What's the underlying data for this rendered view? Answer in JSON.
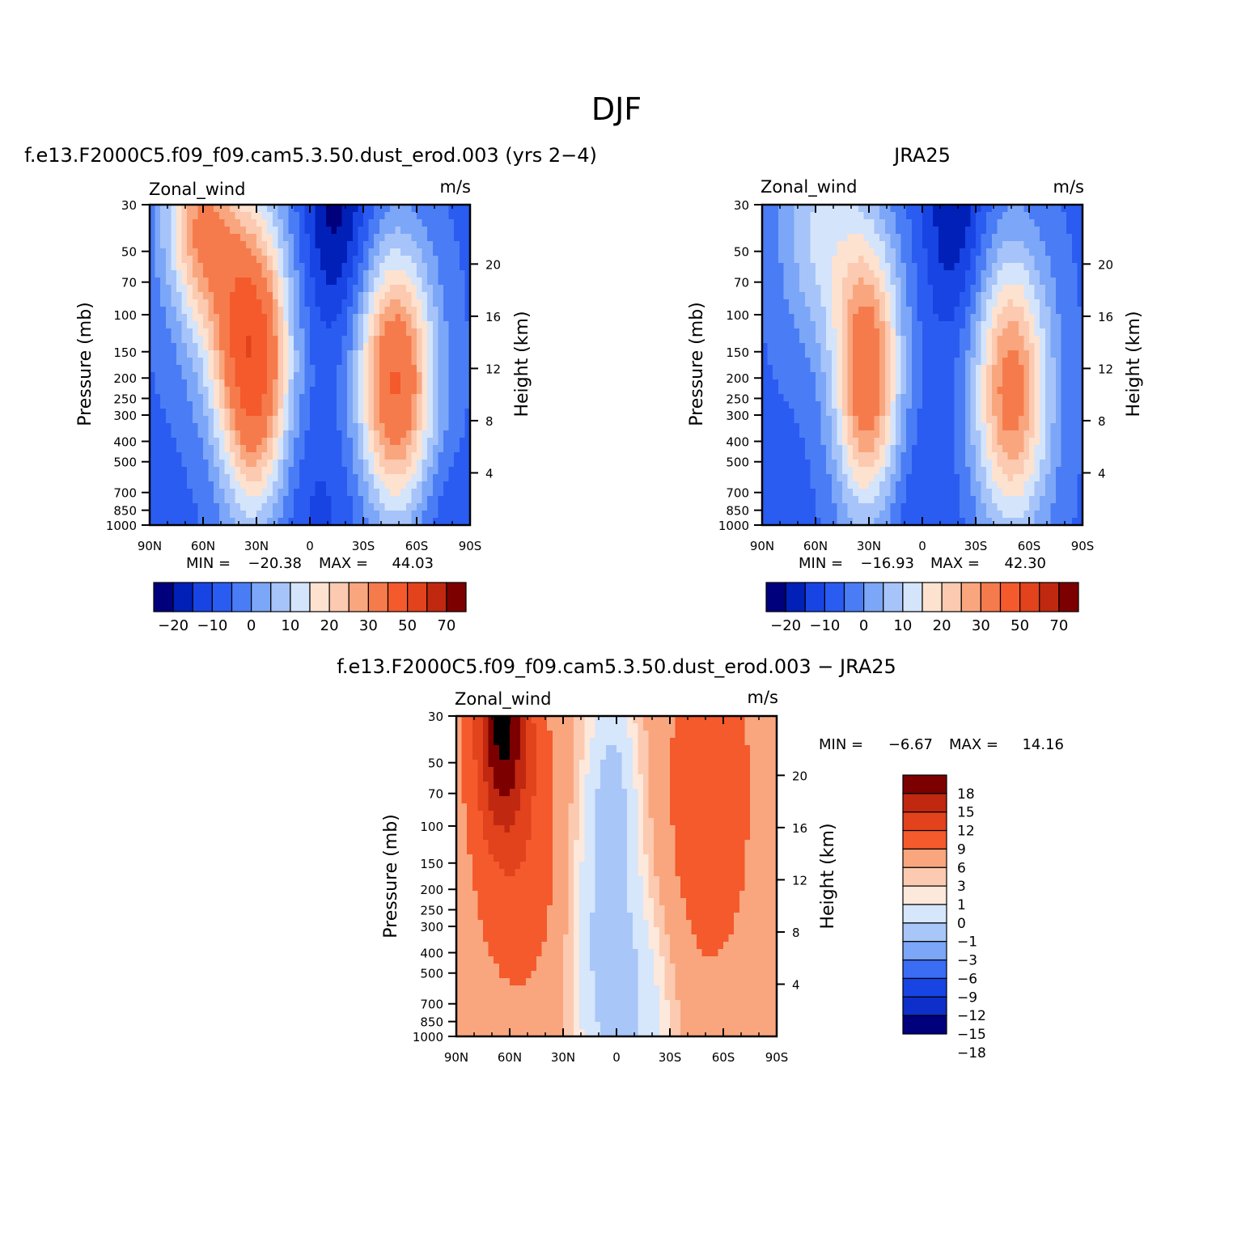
{
  "figure": {
    "title": "DJF",
    "diff_title": "f.e13.F2000C5.f09_f09.cam5.3.50.dust_erod.003 − JRA25"
  },
  "colors": {
    "abs_levels": [
      "#00007d",
      "#0020b8",
      "#1844e4",
      "#2a5cf2",
      "#4a7cf5",
      "#7ca6f7",
      "#a6c4f9",
      "#d4e4fb",
      "#fde2d0",
      "#fbcab0",
      "#f9a67e",
      "#f67b4c",
      "#f45a2c",
      "#e2421c",
      "#c02810",
      "#7d0000"
    ],
    "diff_levels": [
      "#00007d",
      "#0e2fca",
      "#1844e4",
      "#3a6cf4",
      "#7ca6f7",
      "#a8c6f8",
      "#d6e6fb",
      "#fde8dc",
      "#fbcab0",
      "#f9a67e",
      "#f45a2c",
      "#e2421c",
      "#c02810",
      "#7d0000"
    ]
  },
  "chart_data": [
    {
      "type": "heatmap",
      "title": "f.e13.F2000C5.f09_f09.cam5.3.50.dust_erod.003 (yrs 2−4)",
      "field_label": "Zonal_wind",
      "units": "m/s",
      "ylabel": "Pressure (mb)",
      "y2label": "Height (km)",
      "xticks": [
        "90N",
        "60N",
        "30N",
        "0",
        "30S",
        "60S",
        "90S"
      ],
      "yticks": [
        "30",
        "50",
        "70",
        "100",
        "150",
        "200",
        "250",
        "300",
        "400",
        "500",
        "700",
        "850",
        "1000"
      ],
      "y2ticks": [
        "20",
        "16",
        "12",
        "8",
        "4"
      ],
      "min_label": "MIN =",
      "min_value": "−20.38",
      "max_label": "MAX =",
      "max_value": "44.03",
      "colorbar_labels": [
        "−20",
        "−10",
        "0",
        "10",
        "20",
        "30",
        "50",
        "70"
      ],
      "field": {
        "bg": -6,
        "blobs": [
          {
            "lat": 31,
            "p": 200,
            "amp": 46,
            "slat": 14,
            "sp": 1.15
          },
          {
            "lat": 62,
            "p": 35,
            "amp": 30,
            "slat": 14,
            "sp": 0.7
          },
          {
            "lat": 45,
            "p": 90,
            "amp": 18,
            "slat": 18,
            "sp": 0.9
          },
          {
            "lat": -48,
            "p": 210,
            "amp": 47,
            "slat": 15,
            "sp": 1.0
          },
          {
            "lat": -15,
            "p": 30,
            "amp": -16,
            "slat": 13,
            "sp": 1.0
          },
          {
            "lat": 5,
            "p": 800,
            "amp": -6,
            "slat": 30,
            "sp": 0.8
          },
          {
            "lat": -75,
            "p": 850,
            "amp": -4,
            "slat": 12,
            "sp": 0.5
          }
        ]
      }
    },
    {
      "type": "heatmap",
      "title": "JRA25",
      "field_label": "Zonal_wind",
      "units": "m/s",
      "ylabel": "Pressure (mb)",
      "y2label": "Height (km)",
      "xticks": [
        "90N",
        "60N",
        "30N",
        "0",
        "30S",
        "60S",
        "90S"
      ],
      "yticks": [
        "30",
        "50",
        "70",
        "100",
        "150",
        "200",
        "250",
        "300",
        "400",
        "500",
        "700",
        "850",
        "1000"
      ],
      "y2ticks": [
        "20",
        "16",
        "12",
        "8",
        "4"
      ],
      "min_label": "MIN =",
      "min_value": "−16.93",
      "max_label": "MAX =",
      "max_value": "42.30",
      "colorbar_labels": [
        "−20",
        "−10",
        "0",
        "10",
        "20",
        "30",
        "50",
        "70"
      ],
      "field": {
        "bg": -6,
        "blobs": [
          {
            "lat": 31,
            "p": 200,
            "amp": 44,
            "slat": 13,
            "sp": 1.1
          },
          {
            "lat": 58,
            "p": 40,
            "amp": 16,
            "slat": 16,
            "sp": 0.9
          },
          {
            "lat": -50,
            "p": 230,
            "amp": 40,
            "slat": 15,
            "sp": 1.05
          },
          {
            "lat": -18,
            "p": 30,
            "amp": -14,
            "slat": 12,
            "sp": 1.0
          },
          {
            "lat": 10,
            "p": 800,
            "amp": -5,
            "slat": 25,
            "sp": 0.8
          }
        ]
      }
    },
    {
      "type": "heatmap",
      "title": "f.e13.F2000C5.f09_f09.cam5.3.50.dust_erod.003 − JRA25",
      "field_label": "Zonal_wind",
      "units": "m/s",
      "ylabel": "Pressure (mb)",
      "y2label": "Height (km)",
      "xticks": [
        "90N",
        "60N",
        "30N",
        "0",
        "30S",
        "60S",
        "90S"
      ],
      "yticks": [
        "30",
        "50",
        "70",
        "100",
        "150",
        "200",
        "250",
        "300",
        "400",
        "500",
        "700",
        "850",
        "1000"
      ],
      "y2ticks": [
        "20",
        "16",
        "12",
        "8",
        "4"
      ],
      "min_label": "MIN =",
      "min_value": "−6.67",
      "max_label": "MAX =",
      "max_value": "14.16",
      "colorbar_labels": [
        "18",
        "15",
        "12",
        "9",
        "6",
        "3",
        "1",
        "0",
        "−1",
        "−3",
        "−6",
        "−9",
        "−12",
        "−15",
        "−18"
      ],
      "field": {
        "bg": 1.5,
        "blobs": [
          {
            "lat": 64,
            "p": 32,
            "amp": 13,
            "slat": 10,
            "sp": 0.8
          },
          {
            "lat": 55,
            "p": 120,
            "amp": 3.5,
            "slat": 18,
            "sp": 1.2
          },
          {
            "lat": -52,
            "p": 70,
            "amp": 4,
            "slat": 16,
            "sp": 1.3
          },
          {
            "lat": 5,
            "p": 300,
            "amp": -5.5,
            "slat": 14,
            "sp": 1.6
          },
          {
            "lat": 2,
            "p": 60,
            "amp": -2.5,
            "slat": 8,
            "sp": 0.6
          },
          {
            "lat": -15,
            "p": 800,
            "amp": -2.5,
            "slat": 14,
            "sp": 0.8
          }
        ]
      }
    }
  ]
}
